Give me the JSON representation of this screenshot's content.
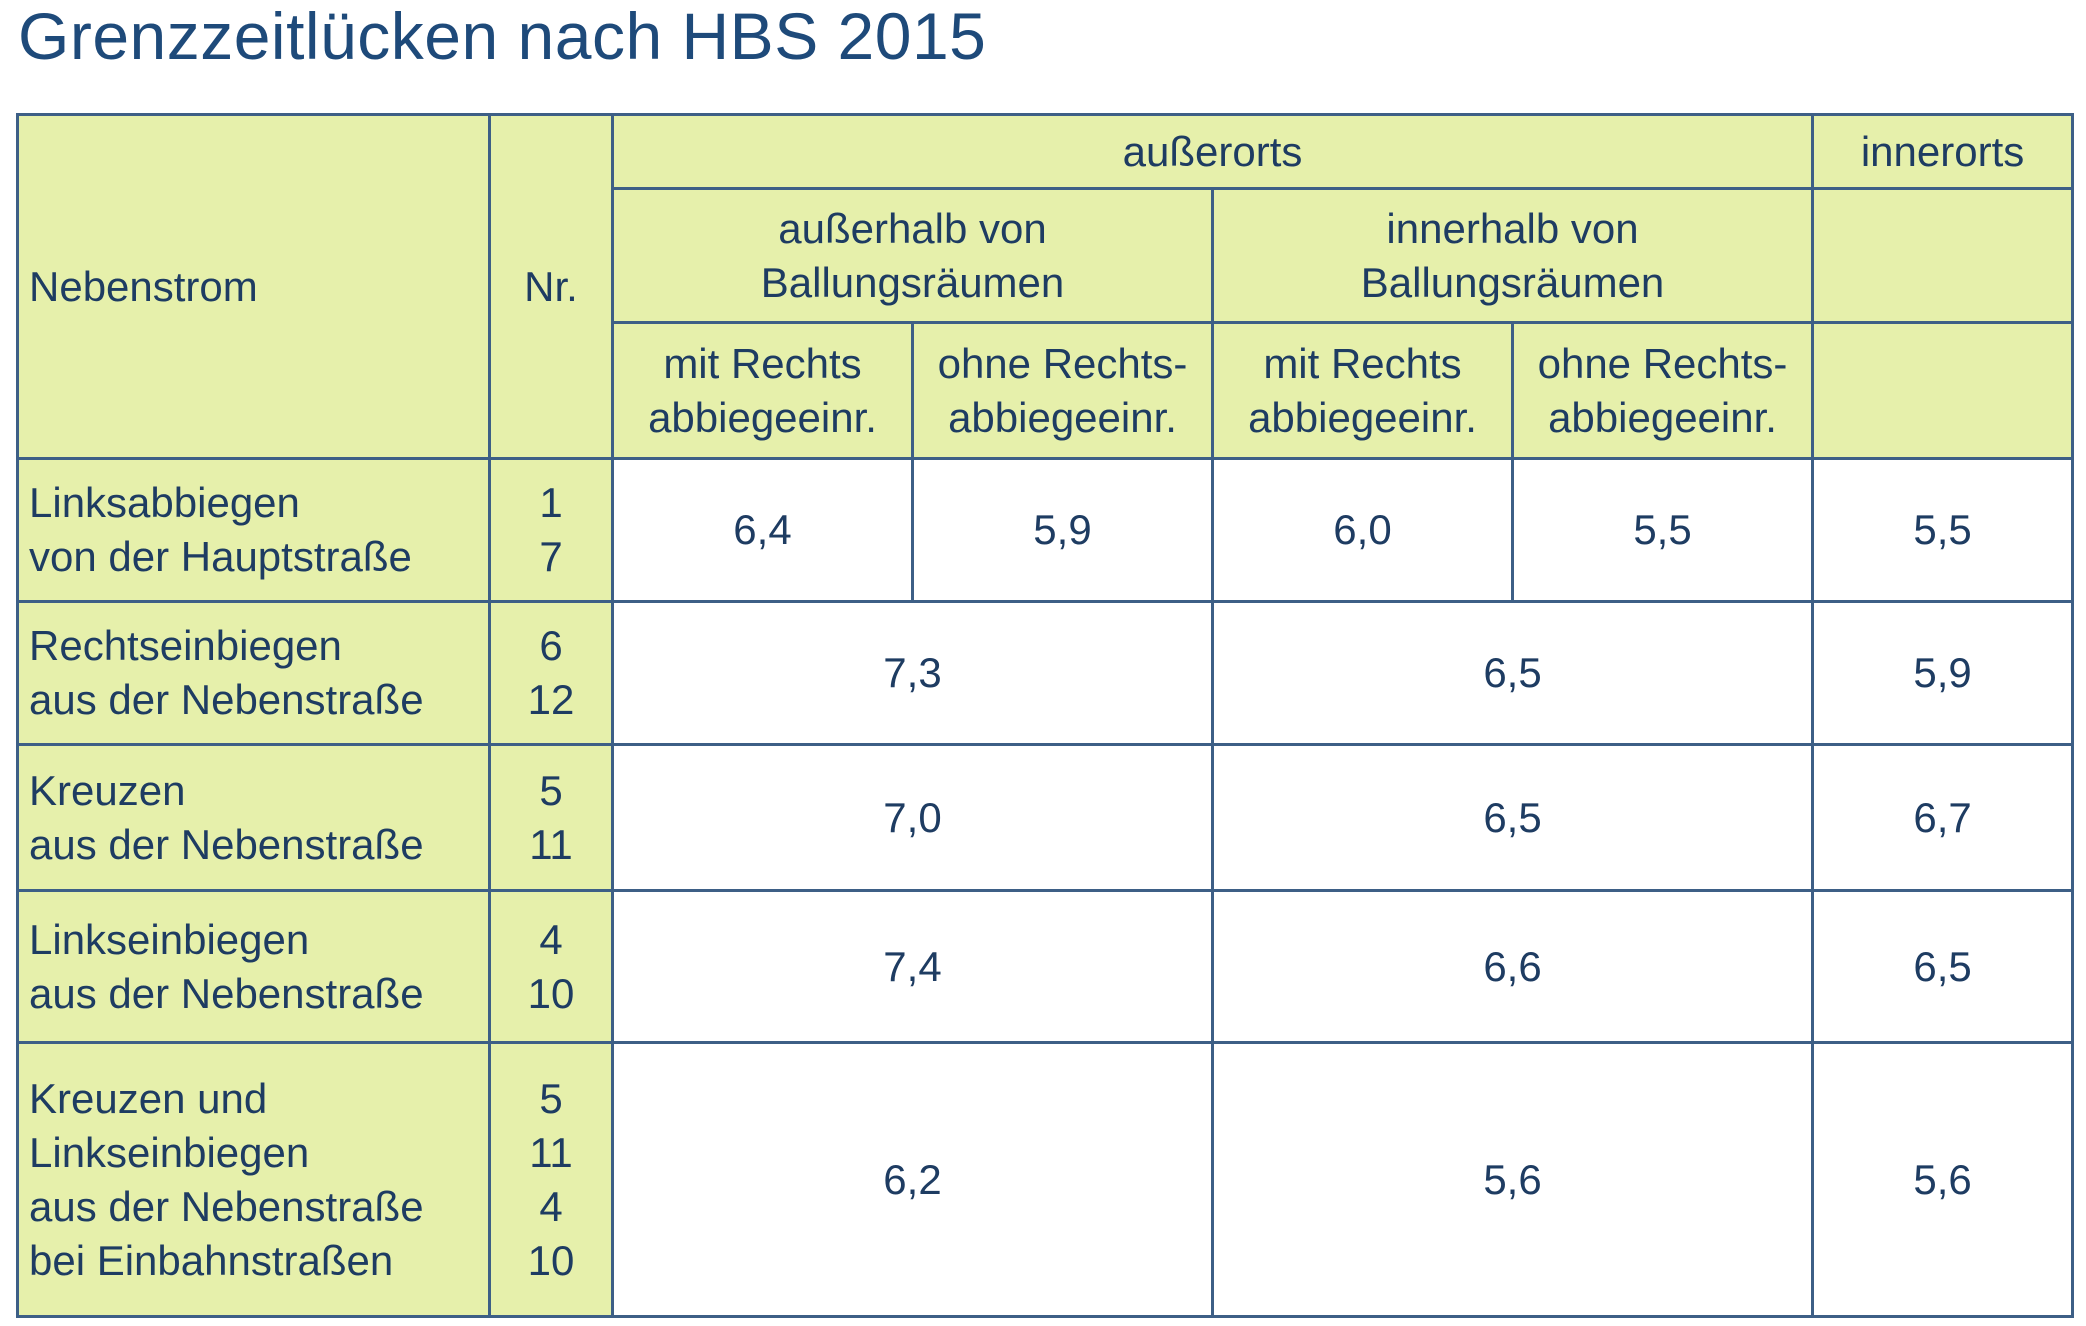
{
  "title": "Grenzzeitlücken nach HBS 2015",
  "header": {
    "nebenstrom": "Nebenstrom",
    "nr": "Nr.",
    "ausserorts": "außerorts",
    "innerorts": "innerorts",
    "ausserhalb": [
      "außerhalb von",
      "Ballungsräumen"
    ],
    "innerhalb": [
      "innerhalb von",
      "Ballungsräumen"
    ],
    "mit_rechts": [
      "mit Rechts",
      "abbiegeeinr."
    ],
    "ohne_rechts": [
      "ohne Rechts-",
      "abbiegeeinr."
    ]
  },
  "rows": [
    {
      "label": [
        "Linksabbiegen",
        "von der Hauptstraße"
      ],
      "nr": [
        "1",
        "7"
      ],
      "values": [
        "6,4",
        "5,9",
        "6,0",
        "5,5",
        "5,5"
      ]
    },
    {
      "label": [
        "Rechtseinbiegen",
        "aus der Nebenstraße"
      ],
      "nr": [
        "6",
        "12"
      ],
      "values": [
        "7,3",
        "6,5",
        "5,9"
      ]
    },
    {
      "label": [
        "Kreuzen",
        "aus der Nebenstraße"
      ],
      "nr": [
        "5",
        "11"
      ],
      "values": [
        "7,0",
        "6,5",
        "6,7"
      ]
    },
    {
      "label": [
        "Linkseinbiegen",
        "aus der Nebenstraße"
      ],
      "nr": [
        "4",
        "10"
      ],
      "values": [
        "7,4",
        "6,6",
        "6,5"
      ]
    },
    {
      "label": [
        "Kreuzen und",
        "Linkseinbiegen",
        "aus der Nebenstraße",
        "bei Einbahnstraßen"
      ],
      "nr": [
        "5",
        "11",
        "4",
        "10"
      ],
      "values": [
        "6,2",
        "5,6",
        "5,6"
      ]
    }
  ],
  "colors": {
    "header_bg": "#e6f0ab",
    "border": "#3d5f86",
    "text": "#1e3c62",
    "title": "#1e4a7a"
  }
}
